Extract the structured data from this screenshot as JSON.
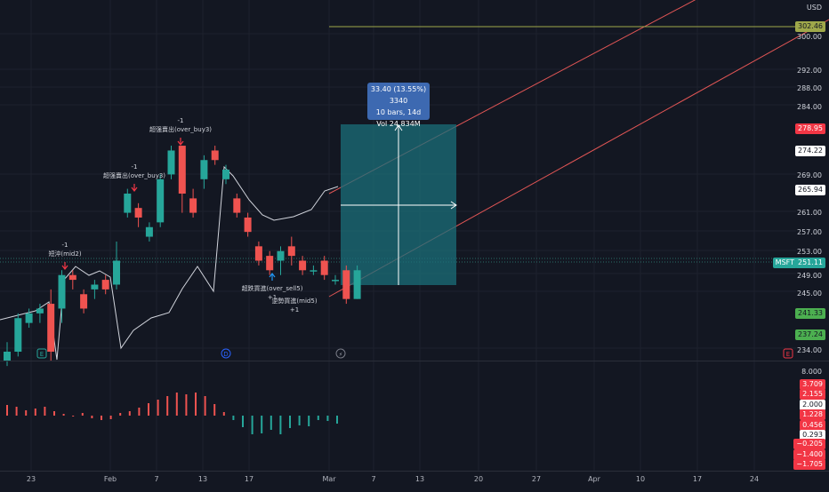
{
  "price_axis": {
    "currency": "USD",
    "ticks": [
      "300.00",
      "292.00",
      "288.00",
      "284.00",
      "269.00",
      "261.00",
      "257.00",
      "253.00",
      "249.00",
      "245.00",
      "234.00"
    ]
  },
  "price_tags": {
    "line_level": {
      "value": "302.46",
      "color": "#9fa84a"
    },
    "red_level": {
      "value": "278.95",
      "color": "#f23645"
    },
    "gray_level_1": {
      "value": "274.22"
    },
    "gray_level_2": {
      "value": "265.94"
    },
    "symbol": {
      "symbol": "MSFT",
      "value": "251.11",
      "color": "#26a69a"
    },
    "green_level_1": {
      "value": "241.33",
      "color": "#4caf50"
    },
    "green_level_2": {
      "value": "237.24",
      "color": "#4caf50"
    }
  },
  "indicator_axis": {
    "top_tick": "8.000",
    "tags": [
      {
        "value": "3.709",
        "color": "#f23645"
      },
      {
        "value": "2.155",
        "color": "#f23645"
      },
      {
        "value": "2.000",
        "color": "#ffffff"
      },
      {
        "value": "1.228",
        "color": "#f23645"
      },
      {
        "value": "0.456",
        "color": "#f23645"
      },
      {
        "value": "0.293",
        "color": "#ffffff"
      },
      {
        "value": "−0.205",
        "color": "#f23645"
      },
      {
        "value": "−1.400",
        "color": "#f23645"
      },
      {
        "value": "−1.705",
        "color": "#f23645"
      }
    ]
  },
  "time_axis": [
    "23",
    "Feb",
    "7",
    "13",
    "17",
    "Mar",
    "7",
    "13",
    "20",
    "27",
    "Apr",
    "10",
    "17",
    "24"
  ],
  "measure_tooltip": {
    "line1": "33.40 (13.55%) 3340",
    "line2": "10 bars, 14d",
    "line3": "Vol 24.834M"
  },
  "annotations": [
    {
      "label": "-1",
      "text": "短沖(mid2)"
    },
    {
      "label": "-1",
      "text": "超强賣出(over_buy3)"
    },
    {
      "label": "-1",
      "text": "超强賣出(over_buy3)"
    },
    {
      "label": "超跌買進(over_sell5)",
      "text": "+1"
    },
    {
      "label": "逆勢買進(mid5)",
      "text": "+1"
    }
  ],
  "event_markers": {
    "earnings": "E",
    "dividend": "D",
    "split": "⚡",
    "pane_e": "E"
  },
  "chart_data": {
    "type": "candlestick",
    "symbol": "MSFT",
    "candles": [
      {
        "o": 232,
        "c": 234,
        "h": 236,
        "l": 231
      },
      {
        "o": 234,
        "c": 241,
        "h": 242,
        "l": 233
      },
      {
        "o": 240,
        "c": 242,
        "h": 243,
        "l": 239
      },
      {
        "o": 242,
        "c": 243,
        "h": 244,
        "l": 240
      },
      {
        "o": 244,
        "c": 234,
        "h": 247,
        "l": 232
      },
      {
        "o": 243,
        "c": 250,
        "h": 251,
        "l": 240
      },
      {
        "o": 250,
        "c": 249,
        "h": 251,
        "l": 247
      },
      {
        "o": 246,
        "c": 243,
        "h": 247,
        "l": 242
      },
      {
        "o": 247,
        "c": 248,
        "h": 249,
        "l": 245
      },
      {
        "o": 249,
        "c": 247,
        "h": 250,
        "l": 246
      },
      {
        "o": 248,
        "c": 253,
        "h": 257,
        "l": 247
      },
      {
        "o": 263,
        "c": 267,
        "h": 268,
        "l": 262
      },
      {
        "o": 264,
        "c": 262,
        "h": 265,
        "l": 260
      },
      {
        "o": 258,
        "c": 260,
        "h": 261,
        "l": 257
      },
      {
        "o": 261,
        "c": 270,
        "h": 271,
        "l": 260
      },
      {
        "o": 271,
        "c": 276,
        "h": 277,
        "l": 270
      },
      {
        "o": 277,
        "c": 267,
        "h": 277,
        "l": 263
      },
      {
        "o": 266,
        "c": 263,
        "h": 268,
        "l": 262
      },
      {
        "o": 270,
        "c": 274,
        "h": 275,
        "l": 268
      },
      {
        "o": 276,
        "c": 274,
        "h": 277,
        "l": 273
      },
      {
        "o": 270,
        "c": 272,
        "h": 273,
        "l": 269
      },
      {
        "o": 266,
        "c": 263,
        "h": 267,
        "l": 262
      },
      {
        "o": 262,
        "c": 259,
        "h": 263,
        "l": 258
      },
      {
        "o": 256,
        "c": 253,
        "h": 257,
        "l": 252
      },
      {
        "o": 254,
        "c": 251,
        "h": 255,
        "l": 250
      },
      {
        "o": 253,
        "c": 255,
        "h": 256,
        "l": 250
      },
      {
        "o": 256,
        "c": 254,
        "h": 258,
        "l": 252
      },
      {
        "o": 253,
        "c": 251,
        "h": 254,
        "l": 250
      },
      {
        "o": 251,
        "c": 251,
        "h": 252,
        "l": 250
      },
      {
        "o": 253,
        "c": 250,
        "h": 254,
        "l": 249
      },
      {
        "o": 249,
        "c": 249,
        "h": 250,
        "l": 248
      },
      {
        "o": 251,
        "c": 245,
        "h": 252,
        "l": 244
      },
      {
        "o": 245,
        "c": 251,
        "h": 252,
        "l": 245
      }
    ],
    "histogram": [
      1.2,
      1.0,
      0.6,
      0.8,
      1.0,
      0.5,
      0.2,
      -0.1,
      0.3,
      -0.3,
      -0.5,
      -0.4,
      0.3,
      0.5,
      0.9,
      1.4,
      1.8,
      2.2,
      2.6,
      2.4,
      2.6,
      2.2,
      1.3,
      0.4,
      -0.5,
      -1.3,
      -2.1,
      -2.0,
      -1.6,
      -2.1,
      -1.4,
      -1.1,
      -1.2,
      -0.5,
      -0.6,
      -0.9
    ],
    "measure": {
      "change": "33.40",
      "percent": "13.55%",
      "bars": 10,
      "days": "14d",
      "volume": "24.834M"
    }
  }
}
